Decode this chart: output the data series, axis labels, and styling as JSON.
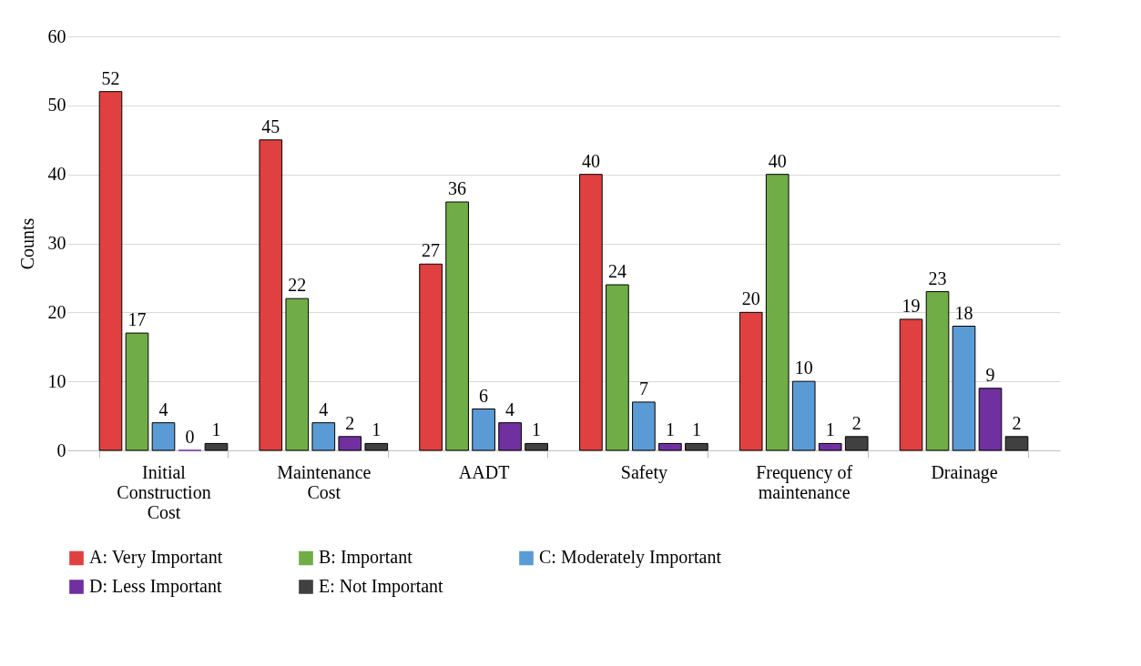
{
  "chart_data": {
    "type": "bar",
    "ylabel": "Counts",
    "categories": [
      "Initial Construction Cost",
      "Maintenance Cost",
      "AADT",
      "Safety",
      "Frequency of maintenance",
      "Drainage"
    ],
    "series": [
      {
        "name": "A: Very Important",
        "color": "#e04040",
        "values": [
          52,
          45,
          27,
          40,
          20,
          19
        ]
      },
      {
        "name": "B: Important",
        "color": "#70ad47",
        "values": [
          17,
          22,
          36,
          24,
          40,
          23
        ]
      },
      {
        "name": "C: Moderately Important",
        "color": "#5b9bd5",
        "values": [
          4,
          4,
          6,
          7,
          10,
          18
        ]
      },
      {
        "name": "D: Less Important",
        "color": "#7030a0",
        "values": [
          0,
          2,
          4,
          1,
          1,
          9
        ]
      },
      {
        "name": "E: Not Important",
        "color": "#404040",
        "values": [
          1,
          1,
          1,
          1,
          2,
          2
        ]
      }
    ],
    "ylim": [
      0,
      60
    ],
    "yticks": [
      0,
      10,
      20,
      30,
      40,
      50,
      60
    ],
    "grid": "y",
    "legend": "bottom",
    "data_labels": true
  }
}
